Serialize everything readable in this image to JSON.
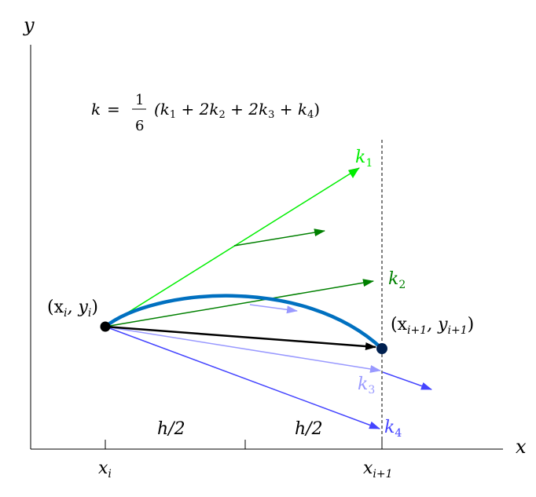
{
  "axes": {
    "x_label": "x",
    "y_label": "y"
  },
  "formula": {
    "lhs": "k",
    "eq": "=",
    "num": "1",
    "den": "6",
    "rhs": "(k",
    "s1": "1",
    "p1": " + 2k",
    "s2": "2",
    "p2": " + 2k",
    "s3": "3",
    "p3": " + k",
    "s4": "4",
    "close": ")"
  },
  "points": {
    "start": {
      "label_x": "(x",
      "sub_x": "i",
      "comma": ", y",
      "sub_y": "i",
      "close": ")"
    },
    "end": {
      "label_x": "(x",
      "sub_x": "i+1",
      "comma": ", y",
      "sub_y": "i+1",
      "close": ")"
    }
  },
  "slopes": [
    {
      "label": "k",
      "sub": "1",
      "color": "#00ee00"
    },
    {
      "label": "k",
      "sub": "2",
      "color": "#008000"
    },
    {
      "label": "k",
      "sub": "3",
      "color": "#9999ff"
    },
    {
      "label": "k",
      "sub": "4",
      "color": "#4444ff"
    }
  ],
  "steps": [
    "h/2",
    "h/2"
  ],
  "ticks": [
    {
      "main": "x",
      "sub": "i"
    },
    {
      "main": "x",
      "sub": "i+1"
    }
  ],
  "colors": {
    "curve": "#0070c0",
    "result": "#000000",
    "end_point": "#002050"
  }
}
